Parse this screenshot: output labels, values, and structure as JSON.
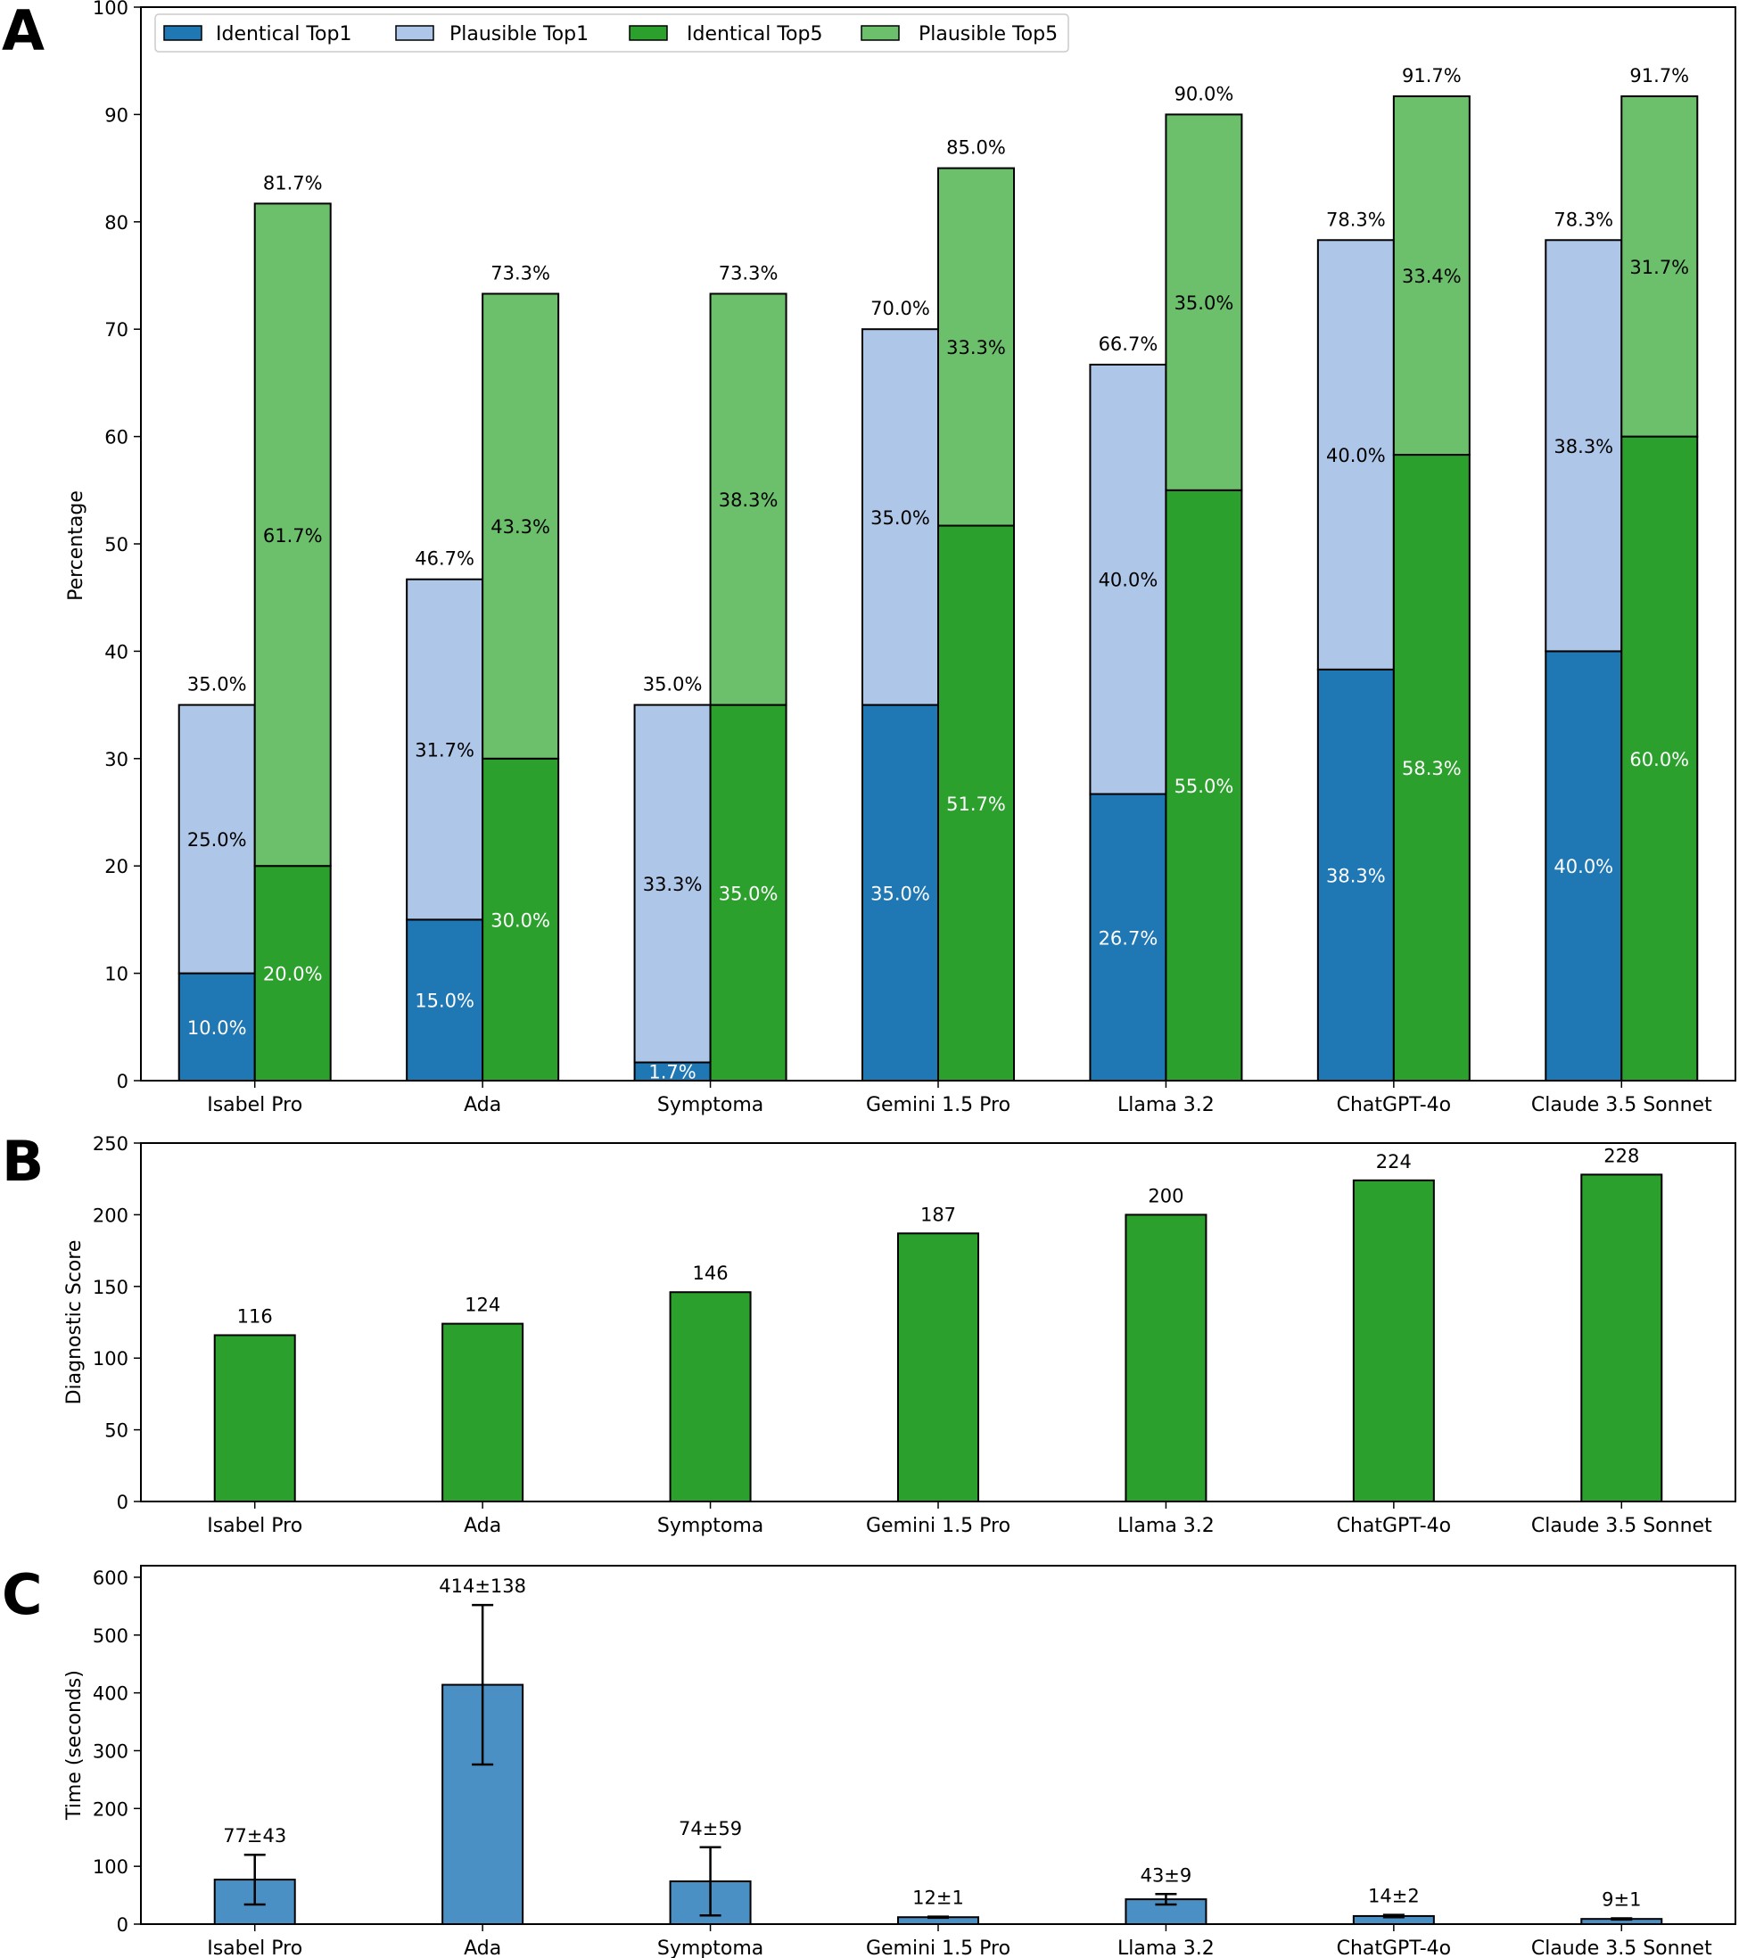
{
  "panel_letters": [
    "A",
    "B",
    "C"
  ],
  "colors": {
    "identical_top1": "#1f77b4",
    "plausible_top1": "#aec7e8",
    "identical_top5": "#2ca02c",
    "plausible_top5": "#6cc06c",
    "score_bar": "#2ca02c",
    "time_bar": "#4a90c4",
    "edge": "#000000"
  },
  "chart_data": [
    {
      "panel": "A",
      "type": "bar",
      "stacked": true,
      "categories": [
        "Isabel Pro",
        "Ada",
        "Symptoma",
        "Gemini 1.5 Pro",
        "Llama 3.2",
        "ChatGPT-4o",
        "Claude 3.5 Sonnet"
      ],
      "ylabel": "Percentage",
      "ylim": [
        0,
        100
      ],
      "yticks": [
        0,
        10,
        20,
        30,
        40,
        50,
        60,
        70,
        80,
        90,
        100
      ],
      "legend_position": "top-left",
      "legend": [
        "Identical Top1",
        "Plausible Top1",
        "Identical Top5",
        "Plausible Top5"
      ],
      "top1": {
        "identical": [
          10.0,
          15.0,
          1.7,
          35.0,
          26.7,
          38.3,
          40.0
        ],
        "plausible": [
          25.0,
          31.7,
          33.3,
          35.0,
          40.0,
          40.0,
          38.3
        ],
        "total": [
          35.0,
          46.7,
          35.0,
          70.0,
          66.7,
          78.3,
          78.3
        ]
      },
      "top5": {
        "identical": [
          20.0,
          30.0,
          35.0,
          51.7,
          55.0,
          58.3,
          60.0
        ],
        "plausible": [
          61.7,
          43.3,
          38.3,
          33.3,
          35.0,
          33.4,
          31.7
        ],
        "total": [
          81.7,
          73.3,
          73.3,
          85.0,
          90.0,
          91.7,
          91.7
        ]
      },
      "labels": {
        "top1_identical": [
          "10.0%",
          "15.0%",
          "1.7%",
          "35.0%",
          "26.7%",
          "38.3%",
          "40.0%"
        ],
        "top1_plausible": [
          "25.0%",
          "31.7%",
          "33.3%",
          "35.0%",
          "40.0%",
          "40.0%",
          "38.3%"
        ],
        "top1_total": [
          "35.0%",
          "46.7%",
          "35.0%",
          "70.0%",
          "66.7%",
          "78.3%",
          "78.3%"
        ],
        "top5_identical": [
          "20.0%",
          "30.0%",
          "35.0%",
          "51.7%",
          "55.0%",
          "58.3%",
          "60.0%"
        ],
        "top5_plausible": [
          "61.7%",
          "43.3%",
          "38.3%",
          "33.3%",
          "35.0%",
          "33.4%",
          "31.7%"
        ],
        "top5_total": [
          "81.7%",
          "73.3%",
          "73.3%",
          "85.0%",
          "90.0%",
          "91.7%",
          "91.7%"
        ]
      }
    },
    {
      "panel": "B",
      "type": "bar",
      "categories": [
        "Isabel Pro",
        "Ada",
        "Symptoma",
        "Gemini 1.5 Pro",
        "Llama 3.2",
        "ChatGPT-4o",
        "Claude 3.5 Sonnet"
      ],
      "ylabel": "Diagnostic Score",
      "ylim": [
        0,
        250
      ],
      "yticks": [
        0,
        50,
        100,
        150,
        200,
        250
      ],
      "values": [
        116,
        124,
        146,
        187,
        200,
        224,
        228
      ],
      "labels": [
        "116",
        "124",
        "146",
        "187",
        "200",
        "224",
        "228"
      ]
    },
    {
      "panel": "C",
      "type": "bar",
      "categories": [
        "Isabel Pro",
        "Ada",
        "Symptoma",
        "Gemini 1.5 Pro",
        "Llama 3.2",
        "ChatGPT-4o",
        "Claude 3.5 Sonnet"
      ],
      "ylabel": "Time (seconds)",
      "ylim": [
        0,
        620
      ],
      "yticks": [
        0,
        100,
        200,
        300,
        400,
        500,
        600
      ],
      "values": [
        77,
        414,
        74,
        12,
        43,
        14,
        9
      ],
      "errors": [
        43,
        138,
        59,
        1,
        9,
        2,
        1
      ],
      "labels": [
        "77±43",
        "414±138",
        "74±59",
        "12±1",
        "43±9",
        "14±2",
        "9±1"
      ]
    }
  ]
}
